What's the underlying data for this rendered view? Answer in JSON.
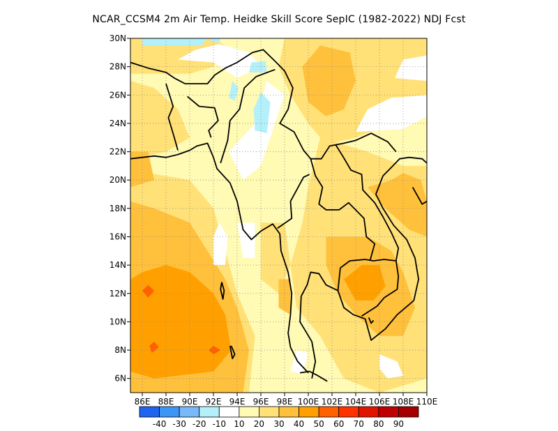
{
  "title": "NCAR_CCSM4  2m Air Temp. Heidke Skill Score SepIC (1982-2022) NDJ Fcst",
  "map": {
    "lon_min": 85,
    "lon_max": 110,
    "lat_min": 5,
    "lat_max": 30,
    "x_ticks": [
      "86E",
      "88E",
      "90E",
      "92E",
      "94E",
      "96E",
      "98E",
      "100E",
      "102E",
      "104E",
      "106E",
      "108E",
      "110E"
    ],
    "y_ticks": [
      "6N",
      "8N",
      "10N",
      "12N",
      "14N",
      "16N",
      "18N",
      "20N",
      "22N",
      "24N",
      "26N",
      "28N",
      "30N"
    ],
    "grid": true
  },
  "colorbar": {
    "colors": [
      "#1e64f0",
      "#3c96f5",
      "#78b9fa",
      "#b4f0fa",
      "#ffffff",
      "#fffab4",
      "#ffe178",
      "#ffc03c",
      "#ffa000",
      "#ff6000",
      "#ff3200",
      "#e11400",
      "#c00000",
      "#a50000"
    ],
    "labels": [
      "-40",
      "-30",
      "-20",
      "-10",
      "10",
      "20",
      "30",
      "40",
      "50",
      "60",
      "70",
      "80",
      "90"
    ]
  },
  "colors": {
    "c_neg10": "#b4f0fa",
    "c_none": "#ffffff",
    "c_10": "#fffab4",
    "c_20": "#ffe178",
    "c_30": "#ffc03c",
    "c_40": "#ffa000",
    "c_50": "#ff6000"
  }
}
